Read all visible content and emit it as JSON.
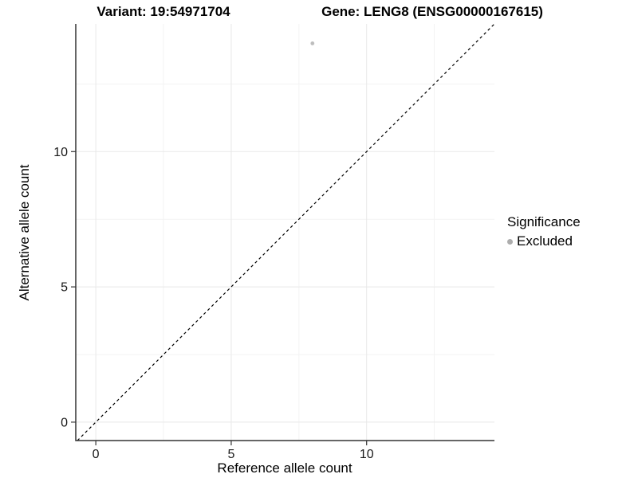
{
  "titles": {
    "variant": "Variant: 19:54971704",
    "gene": "Gene: LENG8 (ENSG00000167615)"
  },
  "legend": {
    "title": "Significance",
    "items": [
      {
        "label": "Excluded",
        "color": "#adadad"
      }
    ]
  },
  "colors": {
    "axis_line": "#333333",
    "tick_text": "#1a1a1a",
    "grid_major": "#e8e8e8",
    "grid_minor": "#f3f3f3",
    "identity_line": "#000000",
    "point": "#bdbdbd"
  },
  "chart_data": {
    "type": "scatter",
    "title_left": "Variant: 19:54971704",
    "title_right": "Gene: LENG8 (ENSG00000167615)",
    "xlabel": "Reference allele count",
    "ylabel": "Alternative allele count",
    "xlim": [
      -0.74,
      14.72
    ],
    "ylim": [
      -0.68,
      14.72
    ],
    "xticks": [
      0,
      5,
      10
    ],
    "yticks": [
      0,
      5,
      10
    ],
    "minor_ticks_x": [
      2.5,
      7.5,
      12.5
    ],
    "minor_ticks_y": [
      2.5,
      7.5,
      12.5
    ],
    "grid": true,
    "legend_position": "right",
    "identity_line": {
      "show": true,
      "style": "dashed",
      "color": "#000000"
    },
    "series": [
      {
        "name": "Excluded",
        "color": "#bdbdbd",
        "points": [
          {
            "x": 8,
            "y": 14
          }
        ]
      }
    ]
  }
}
